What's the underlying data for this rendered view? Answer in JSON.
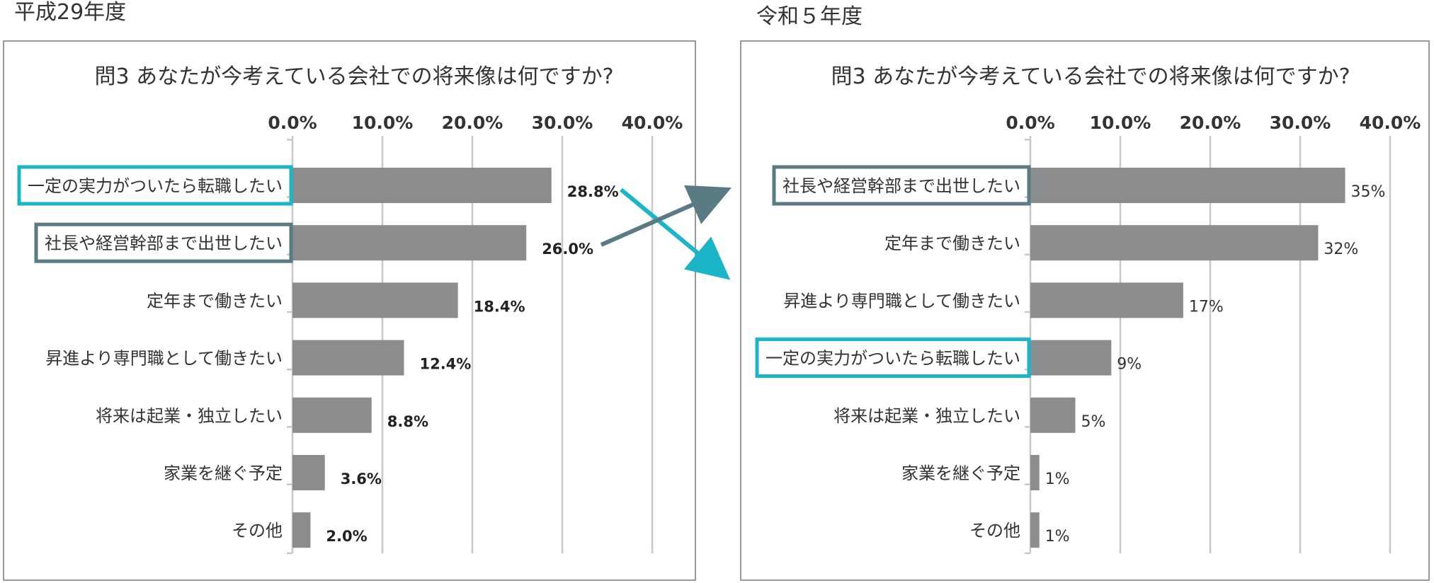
{
  "chart_data": [
    {
      "type": "bar",
      "period_label": "平成29年度",
      "title": "問3 あなたが今考えている会社での将来像は何ですか?",
      "xlim": [
        0,
        40
      ],
      "tick_labels": [
        "0.0%",
        "10.0%",
        "20.0%",
        "30.0%",
        "40.0%"
      ],
      "categories": [
        "一定の実力がついたら転職したい",
        "社長や経営幹部まで出世したい",
        "定年まで働きたい",
        "昇進より専門職として働きたい",
        "将来は起業・独立したい",
        "家業を継ぐ予定",
        "その他"
      ],
      "values": [
        28.8,
        26.0,
        18.4,
        12.4,
        8.8,
        3.6,
        2.0
      ],
      "value_labels": [
        "28.8%",
        "26.0%",
        "18.4%",
        "12.4%",
        "8.8%",
        "3.6%",
        "2.0%"
      ],
      "highlights": {
        "一定の実力がついたら転職したい": "#1ab5c7",
        "社長や経営幹部まで出世したい": "#5a7b83"
      },
      "grid": true,
      "bar_color": "#8a8c8e"
    },
    {
      "type": "bar",
      "period_label": "令和５年度",
      "title": "問3 あなたが今考えている会社での将来像は何ですか?",
      "xlim": [
        0,
        40
      ],
      "tick_labels": [
        "0.0%",
        "10.0%",
        "20.0%",
        "30.0%",
        "40.0%"
      ],
      "categories": [
        "社長や経営幹部まで出世したい",
        "定年まで働きたい",
        "昇進より専門職として働きたい",
        "一定の実力がついたら転職したい",
        "将来は起業・独立したい",
        "家業を継ぐ予定",
        "その他"
      ],
      "values": [
        35,
        32,
        17,
        9,
        5,
        1,
        1
      ],
      "value_labels": [
        "35%",
        "32%",
        "17%",
        "9%",
        "5%",
        "1%",
        "1%"
      ],
      "highlights": {
        "社長や経営幹部まで出世したい": "#5a7b83",
        "一定の実力がついたら転職したい": "#1ab5c7"
      },
      "grid": true,
      "bar_color": "#8a8c8e"
    }
  ],
  "colors": {
    "frame": "#999999",
    "grid": "#c8c8c8",
    "arrow_teal": "#1ab5c7",
    "arrow_slate": "#5a7b83"
  }
}
